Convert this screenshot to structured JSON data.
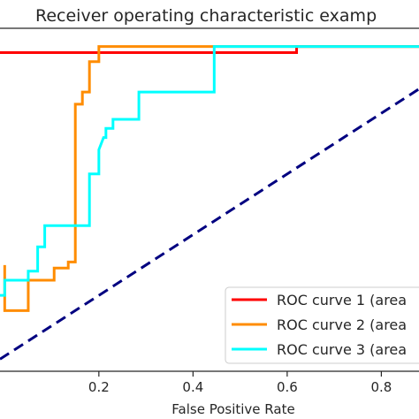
{
  "chart_data": {
    "type": "line",
    "title": "Receiver operating characteristic examp",
    "xlabel": "False Positive Rate",
    "ylabel": "",
    "xlim": [
      -0.01,
      0.88
    ],
    "ylim": [
      -0.05,
      1.08
    ],
    "xticks": [
      0.2,
      0.4,
      0.6,
      0.8
    ],
    "xtick_labels": [
      "0.2",
      "0.4",
      "0.6",
      "0.8"
    ],
    "grid": false,
    "legend_position": "lower-right",
    "series": [
      {
        "name": "ROC curve 1 (area",
        "color": "#ff0000",
        "dash": "solid",
        "x": [
          -0.01,
          0.62,
          0.62,
          0.88
        ],
        "y": [
          1.0,
          1.0,
          1.02,
          1.02
        ]
      },
      {
        "name": "ROC curve 2 (area",
        "color": "#ff8c00",
        "dash": "solid",
        "x": [
          0.0,
          0.0,
          0.05,
          0.05,
          0.105,
          0.105,
          0.135,
          0.135,
          0.15,
          0.15,
          0.165,
          0.165,
          0.18,
          0.18,
          0.2,
          0.2,
          0.88
        ],
        "y": [
          0.3,
          0.15,
          0.15,
          0.25,
          0.25,
          0.29,
          0.29,
          0.31,
          0.31,
          0.83,
          0.83,
          0.87,
          0.87,
          0.97,
          0.97,
          1.02,
          1.02
        ]
      },
      {
        "name": "ROC curve 3 (area",
        "color": "#00ffff",
        "dash": "solid",
        "x": [
          -0.01,
          0.0,
          0.0,
          0.05,
          0.05,
          0.07,
          0.07,
          0.085,
          0.085,
          0.18,
          0.18,
          0.2,
          0.2,
          0.21,
          0.215,
          0.215,
          0.23,
          0.23,
          0.285,
          0.285,
          0.445,
          0.445,
          0.88
        ],
        "y": [
          0.2,
          0.2,
          0.25,
          0.25,
          0.28,
          0.28,
          0.36,
          0.36,
          0.43,
          0.43,
          0.6,
          0.6,
          0.68,
          0.72,
          0.72,
          0.75,
          0.75,
          0.78,
          0.78,
          0.87,
          0.87,
          1.02,
          1.02
        ]
      },
      {
        "name": "",
        "color": "#000080",
        "dash": "dashed",
        "x": [
          -0.01,
          0.88
        ],
        "y": [
          -0.01,
          0.88
        ]
      }
    ]
  }
}
